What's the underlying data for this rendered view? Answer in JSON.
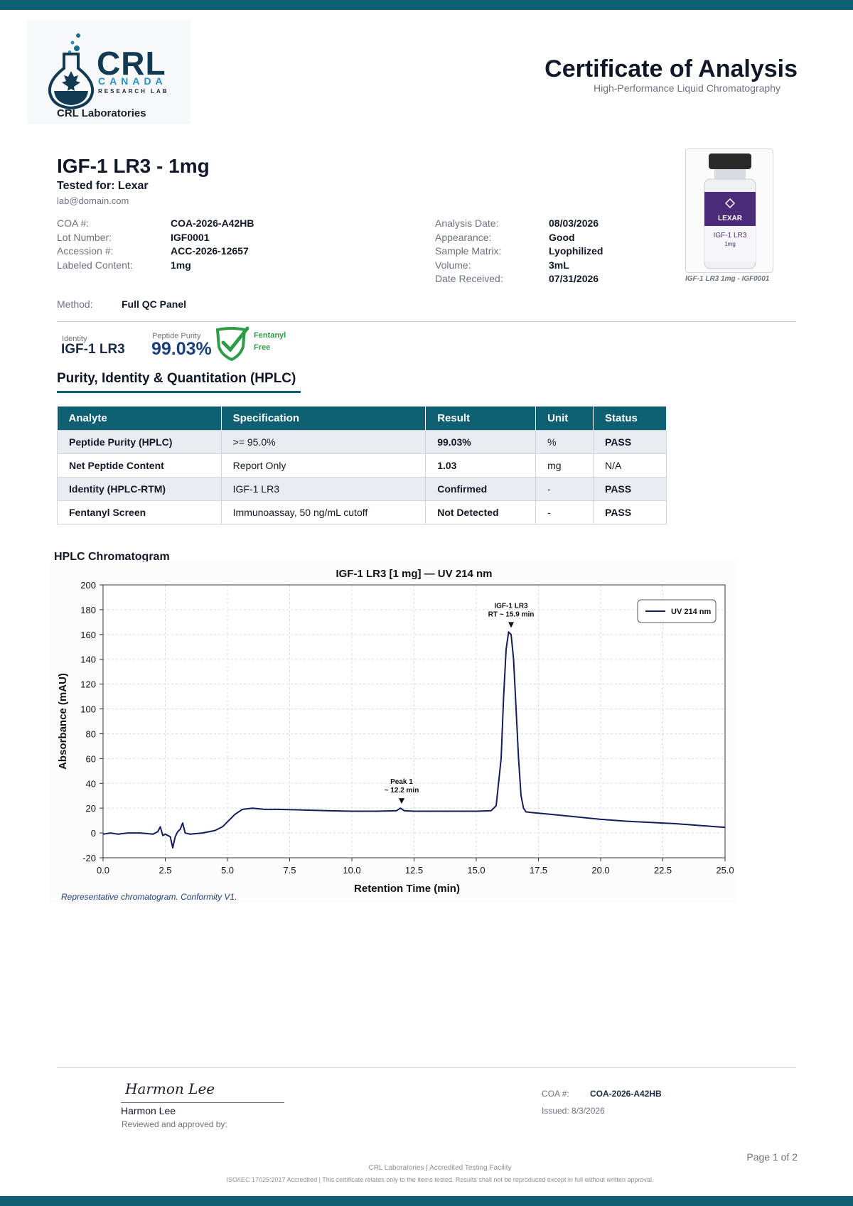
{
  "brand": {
    "logo_main": "CRL",
    "logo_sub": "CANADA",
    "logo_tag": "RESEARCH LAB",
    "lab_name": "CRL Laboratories",
    "accent": "#0f6073",
    "pass_color": "#2e9c47"
  },
  "header": {
    "title": "Certificate of Analysis",
    "subtitle": "High-Performance Liquid Chromatography"
  },
  "product": {
    "title": "IGF-1 LR3 - 1mg",
    "tested_for": "Tested for: Lexar",
    "email": "lab@domain.com",
    "image_caption": "IGF-1 LR3 1mg - IGF0001",
    "vial_brand": "LEXAR",
    "vial_name": "IGF-1 LR3",
    "vial_dose": "1mg"
  },
  "details_left": [
    {
      "label": "COA #:",
      "value": "COA-2026-A42HB"
    },
    {
      "label": "Lot Number:",
      "value": "IGF0001"
    },
    {
      "label": "Accession #:",
      "value": "ACC-2026-12657"
    },
    {
      "label": "Labeled Content:",
      "value": "1mg"
    }
  ],
  "details_right": [
    {
      "label": "Analysis Date:",
      "value": "08/03/2026"
    },
    {
      "label": "Appearance:",
      "value": "Good"
    },
    {
      "label": "Sample Matrix:",
      "value": "Lyophilized"
    },
    {
      "label": "Volume:",
      "value": "3mL"
    },
    {
      "label": "Date Received:",
      "value": "07/31/2026"
    }
  ],
  "method": {
    "label": "Method:",
    "value": "Full QC Panel"
  },
  "summary": {
    "identity_label": "Identity",
    "identity_value": "IGF-1 LR3",
    "purity_label": "Peptide Purity",
    "purity_value": "99.03%",
    "fentanyl_line1": "Fentanyl",
    "fentanyl_line2": "Free"
  },
  "section_title": "Purity, Identity & Quantitation (HPLC)",
  "results_table": {
    "headers": [
      "Analyte",
      "Specification",
      "Result",
      "Unit",
      "Status"
    ],
    "rows": [
      {
        "analyte": "Peptide Purity (HPLC)",
        "spec": ">= 95.0%",
        "result": "99.03%",
        "unit": "%",
        "status": "PASS"
      },
      {
        "analyte": "Net Peptide Content",
        "spec": "Report Only",
        "result": "1.03",
        "unit": "mg",
        "status": "N/A"
      },
      {
        "analyte": "Identity (HPLC-RTM)",
        "spec": "IGF-1 LR3",
        "result": "Confirmed",
        "unit": "-",
        "status": "PASS"
      },
      {
        "analyte": "Fentanyl Screen",
        "spec": "Immunoassay, 50 ng/mL cutoff",
        "result": "Not Detected",
        "unit": "-",
        "status": "PASS"
      }
    ]
  },
  "chromatogram_heading": "HPLC Chromatogram",
  "chart_data": {
    "type": "line",
    "title": "IGF-1 LR3 [1 mg] — UV 214 nm",
    "xlabel": "Retention Time (min)",
    "ylabel": "Absorbance (mAU)",
    "xlim": [
      0,
      25
    ],
    "ylim": [
      -20,
      200
    ],
    "xticks": [
      0.0,
      2.5,
      5.0,
      7.5,
      10.0,
      12.5,
      15.0,
      17.5,
      20.0,
      22.5,
      25.0
    ],
    "xtick_labels": [
      "0.0",
      "2.5",
      "5.0",
      "7.5",
      "10.0",
      "12.5",
      "15.0",
      "17.5",
      "20.0",
      "22.5",
      "25.0"
    ],
    "yticks": [
      -20,
      0,
      20,
      40,
      60,
      80,
      100,
      120,
      140,
      160,
      180,
      200
    ],
    "grid": true,
    "legend_position": "top-right",
    "series": [
      {
        "name": "UV 214 nm",
        "color": "#141c5a",
        "x": [
          0,
          0.3,
          0.6,
          1.0,
          1.5,
          2.0,
          2.2,
          2.3,
          2.4,
          2.5,
          2.7,
          2.8,
          2.9,
          3.0,
          3.1,
          3.2,
          3.3,
          3.5,
          4.0,
          4.5,
          4.8,
          5.0,
          5.3,
          5.6,
          6.0,
          6.5,
          7.0,
          8.0,
          9.0,
          10.0,
          11.0,
          11.8,
          11.95,
          12.1,
          12.5,
          13.0,
          14.0,
          15.0,
          15.6,
          15.8,
          16.0,
          16.1,
          16.2,
          16.3,
          16.4,
          16.5,
          16.6,
          16.7,
          16.8,
          16.9,
          17.0,
          17.2,
          17.5,
          18.0,
          19.0,
          20.0,
          21.0,
          22.0,
          23.0,
          24.0,
          25.0
        ],
        "y": [
          -1,
          0,
          -1,
          0,
          0,
          -1,
          1,
          5,
          -2,
          -1,
          -3,
          -12,
          -3,
          1,
          3,
          8,
          0,
          -1,
          0,
          2,
          5,
          9,
          15,
          19,
          20,
          19,
          19,
          18.5,
          18,
          17.5,
          17.5,
          18,
          20,
          18,
          17.5,
          17.5,
          17.5,
          17.5,
          18,
          22,
          60,
          110,
          148,
          162,
          160,
          140,
          100,
          60,
          30,
          20,
          17,
          16.5,
          16,
          15,
          13,
          11,
          9.5,
          8.5,
          7.5,
          6,
          4.5
        ]
      }
    ],
    "annotations": [
      {
        "label_line1": "Peak 1",
        "label_line2": "~ 12.2 min",
        "x": 12.0,
        "y": 20
      },
      {
        "label_line1": "IGF-1 LR3",
        "label_line2": "RT ~ 15.9 min",
        "x": 16.4,
        "y": 162
      }
    ],
    "caption": "Representative chromatogram. Conformity V1."
  },
  "signature": {
    "script": "Harmon Lee",
    "name": "Harmon Lee",
    "note": "Reviewed and approved by:"
  },
  "footer": {
    "coa_label": "COA #:",
    "coa_value": "COA-2026-A42HB",
    "issued": "Issued: 8/3/2026",
    "page": "Page 1 of 2",
    "line1": "CRL Laboratories | Accredited Testing Facility",
    "line2": "ISO/IEC 17025:2017 Accredited | This certificate relates only to the items tested. Results shall not be reproduced except in full without written approval."
  }
}
